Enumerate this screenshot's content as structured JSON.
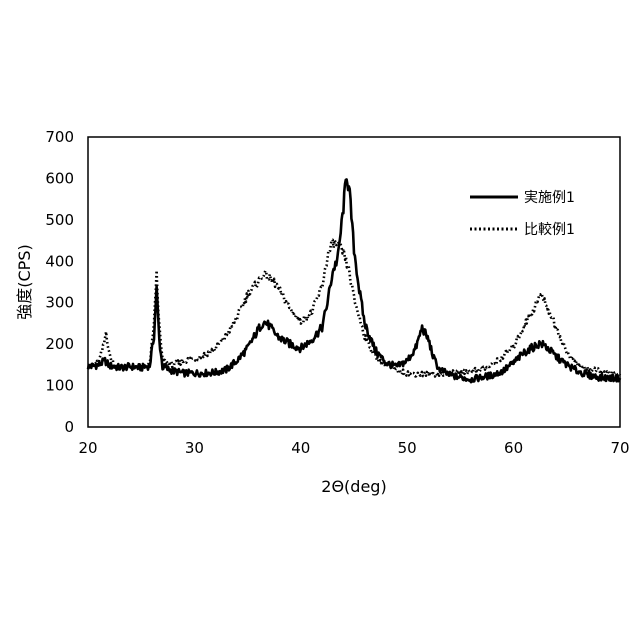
{
  "chart_data": {
    "type": "line",
    "xlabel": "2Θ(deg)",
    "ylabel": "強度(CPS)",
    "xlim": [
      20,
      70
    ],
    "ylim": [
      0,
      700
    ],
    "xticks": [
      20,
      30,
      40,
      50,
      60,
      70
    ],
    "yticks": [
      0,
      100,
      200,
      300,
      400,
      500,
      600,
      700
    ],
    "grid": false,
    "legend_position": "top-right",
    "series": [
      {
        "name": "実施例1",
        "style": "solid",
        "color": "#000000",
        "points": [
          [
            20,
            145
          ],
          [
            21,
            150
          ],
          [
            21.6,
            160
          ],
          [
            22,
            148
          ],
          [
            23,
            143
          ],
          [
            24,
            146
          ],
          [
            25,
            143
          ],
          [
            25.8,
            148
          ],
          [
            26.2,
            220
          ],
          [
            26.45,
            335
          ],
          [
            26.7,
            210
          ],
          [
            27,
            145
          ],
          [
            28,
            135
          ],
          [
            29,
            130
          ],
          [
            30,
            130
          ],
          [
            31,
            130
          ],
          [
            32,
            132
          ],
          [
            33,
            138
          ],
          [
            34,
            160
          ],
          [
            35,
            190
          ],
          [
            36,
            235
          ],
          [
            36.5,
            255
          ],
          [
            37,
            245
          ],
          [
            37.5,
            228
          ],
          [
            38,
            215
          ],
          [
            39,
            200
          ],
          [
            40,
            190
          ],
          [
            41,
            210
          ],
          [
            42,
            240
          ],
          [
            42.5,
            300
          ],
          [
            43,
            375
          ],
          [
            43.5,
            410
          ],
          [
            44,
            530
          ],
          [
            44.3,
            612
          ],
          [
            44.6,
            560
          ],
          [
            45,
            430
          ],
          [
            45.5,
            330
          ],
          [
            46,
            250
          ],
          [
            47,
            185
          ],
          [
            48,
            155
          ],
          [
            49,
            145
          ],
          [
            50,
            160
          ],
          [
            50.8,
            190
          ],
          [
            51.4,
            240
          ],
          [
            52,
            210
          ],
          [
            52.5,
            165
          ],
          [
            53,
            140
          ],
          [
            54,
            125
          ],
          [
            55,
            120
          ],
          [
            56,
            115
          ],
          [
            57,
            120
          ],
          [
            58,
            125
          ],
          [
            59,
            135
          ],
          [
            60,
            155
          ],
          [
            61,
            180
          ],
          [
            62,
            195
          ],
          [
            62.5,
            202
          ],
          [
            63,
            195
          ],
          [
            64,
            170
          ],
          [
            65,
            150
          ],
          [
            66,
            135
          ],
          [
            67,
            125
          ],
          [
            68,
            120
          ],
          [
            69,
            118
          ],
          [
            70,
            118
          ]
        ]
      },
      {
        "name": "比較例1",
        "style": "dotted",
        "color": "#000000",
        "points": [
          [
            20,
            148
          ],
          [
            21,
            155
          ],
          [
            21.5,
            200
          ],
          [
            21.7,
            230
          ],
          [
            22,
            175
          ],
          [
            22.5,
            150
          ],
          [
            23,
            145
          ],
          [
            24,
            145
          ],
          [
            25,
            145
          ],
          [
            25.8,
            150
          ],
          [
            26.2,
            250
          ],
          [
            26.45,
            370
          ],
          [
            26.7,
            240
          ],
          [
            27,
            160
          ],
          [
            28,
            150
          ],
          [
            29,
            160
          ],
          [
            30,
            165
          ],
          [
            31,
            175
          ],
          [
            32,
            190
          ],
          [
            33,
            220
          ],
          [
            34,
            265
          ],
          [
            35,
            320
          ],
          [
            36,
            350
          ],
          [
            36.5,
            370
          ],
          [
            37,
            360
          ],
          [
            37.5,
            350
          ],
          [
            38,
            330
          ],
          [
            39,
            285
          ],
          [
            40,
            255
          ],
          [
            41,
            275
          ],
          [
            42,
            340
          ],
          [
            42.5,
            410
          ],
          [
            43,
            445
          ],
          [
            43.5,
            440
          ],
          [
            44,
            420
          ],
          [
            44.5,
            380
          ],
          [
            45,
            310
          ],
          [
            46,
            220
          ],
          [
            47,
            170
          ],
          [
            48,
            150
          ],
          [
            49,
            135
          ],
          [
            50,
            130
          ],
          [
            51,
            128
          ],
          [
            52,
            128
          ],
          [
            53,
            128
          ],
          [
            54,
            130
          ],
          [
            55,
            132
          ],
          [
            56,
            135
          ],
          [
            57,
            140
          ],
          [
            58,
            150
          ],
          [
            59,
            170
          ],
          [
            60,
            195
          ],
          [
            61,
            245
          ],
          [
            62,
            290
          ],
          [
            62.5,
            320
          ],
          [
            63,
            300
          ],
          [
            64,
            240
          ],
          [
            65,
            180
          ],
          [
            66,
            150
          ],
          [
            67,
            140
          ],
          [
            68,
            135
          ],
          [
            69,
            130
          ],
          [
            70,
            125
          ]
        ]
      }
    ]
  }
}
